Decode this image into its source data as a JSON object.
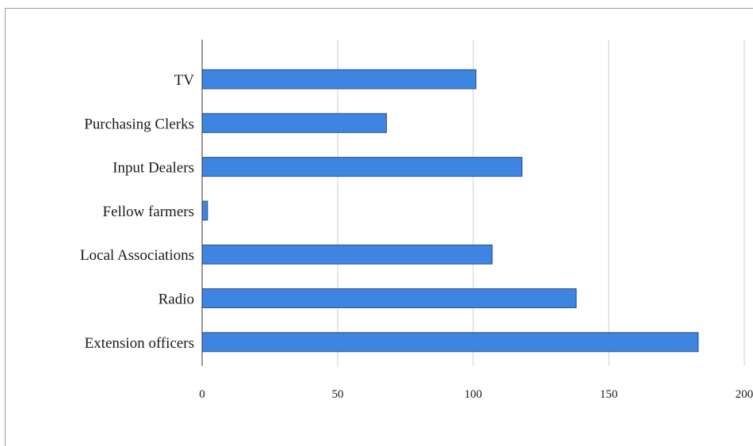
{
  "chart_data": {
    "type": "bar",
    "orientation": "horizontal",
    "categories": [
      "TV",
      "Purchasing Clerks",
      "Input Dealers",
      "Fellow farmers",
      "Local Associations",
      "Radio",
      "Extension officers"
    ],
    "values": [
      101,
      68,
      118,
      2,
      107,
      138,
      183
    ],
    "xlim": [
      0,
      200
    ],
    "xticks": [
      0,
      50,
      100,
      150,
      200
    ],
    "xtick_labels": [
      "0",
      "50",
      "100",
      "150",
      "200"
    ],
    "grid": "vertical",
    "legend": "none",
    "bar_color": "#3d85e0",
    "bar_edge_color": "#2a4f86",
    "grid_color": "#cfcfcf"
  }
}
